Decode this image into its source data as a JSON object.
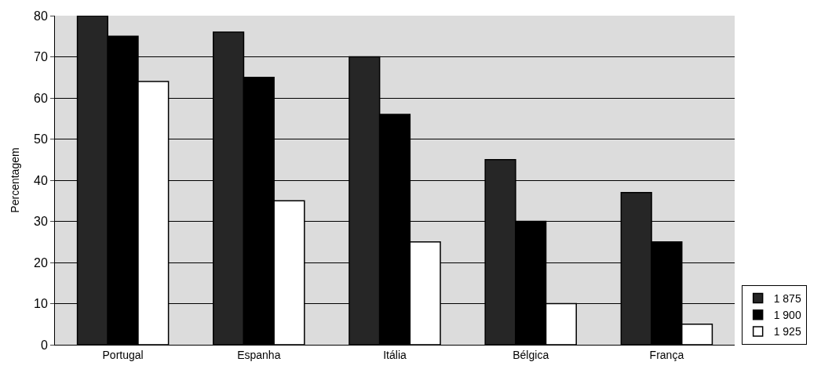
{
  "chart_data": {
    "type": "bar",
    "ylabel": "Percentagem",
    "categories": [
      "Portugal",
      "Espanha",
      "Itália",
      "Bélgica",
      "França"
    ],
    "series": [
      {
        "name": "1 875",
        "color": "#262626",
        "values": [
          80,
          76,
          70,
          45,
          37
        ]
      },
      {
        "name": "1 900",
        "color": "#000000",
        "values": [
          75,
          65,
          56,
          30,
          25
        ]
      },
      {
        "name": "1 925",
        "color": "#ffffff",
        "values": [
          64,
          35,
          25,
          10,
          5
        ]
      }
    ],
    "ylim": [
      0,
      80
    ],
    "yticks": [
      0,
      10,
      20,
      30,
      40,
      50,
      60,
      70,
      80
    ],
    "grid": "y",
    "legend": "bottom right"
  }
}
